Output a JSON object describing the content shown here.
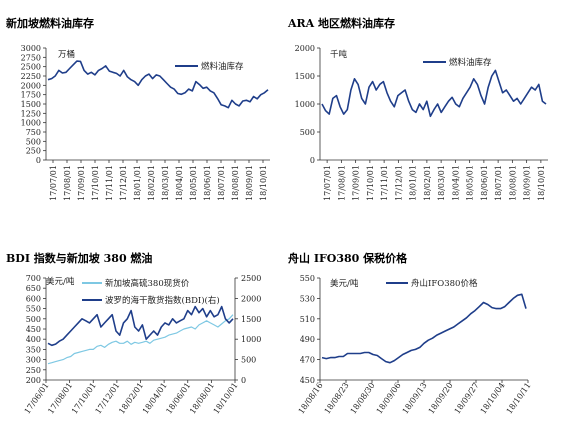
{
  "chart_data": [
    {
      "type": "line",
      "title": "新加坡燃料油库存",
      "unit": "万桶",
      "ylim": [
        0,
        3000
      ],
      "yticks": [
        0,
        250,
        500,
        750,
        1000,
        1250,
        1500,
        1750,
        2000,
        2250,
        2500,
        2750,
        3000
      ],
      "xticks": [
        "17/07/01",
        "17/08/01",
        "17/09/01",
        "17/10/01",
        "17/11/01",
        "17/12/01",
        "18/01/01",
        "18/02/01",
        "18/03/01",
        "18/04/01",
        "18/05/01",
        "18/06/01",
        "18/07/01",
        "18/08/01",
        "18/09/01",
        "18/10/01"
      ],
      "legend_position": "top-right",
      "series": [
        {
          "name": "燃料油库存",
          "color": "#1f3e8a",
          "values": [
            2150,
            2180,
            2250,
            2400,
            2330,
            2350,
            2450,
            2550,
            2650,
            2640,
            2400,
            2300,
            2350,
            2280,
            2400,
            2450,
            2520,
            2380,
            2350,
            2320,
            2250,
            2400,
            2230,
            2150,
            2100,
            2000,
            2150,
            2250,
            2300,
            2180,
            2280,
            2250,
            2150,
            2050,
            1950,
            1900,
            1780,
            1760,
            1800,
            1900,
            1850,
            2100,
            2020,
            1920,
            1950,
            1850,
            1800,
            1650,
            1480,
            1450,
            1400,
            1600,
            1500,
            1450,
            1580,
            1600,
            1560,
            1700,
            1640,
            1750,
            1800,
            1880
          ]
        }
      ]
    },
    {
      "type": "line",
      "title": "ARA 地区燃料油库存",
      "unit": "千吨",
      "ylim": [
        0,
        2000
      ],
      "yticks": [
        0,
        500,
        1000,
        1500,
        2000
      ],
      "xticks": [
        "17/07/01",
        "17/08/01",
        "17/09/01",
        "17/10/01",
        "17/11/01",
        "17/12/01",
        "18/01/01",
        "18/02/01",
        "18/03/01",
        "18/04/01",
        "18/05/01",
        "18/06/01",
        "18/07/01",
        "18/08/01",
        "18/09/01",
        "18/10/01"
      ],
      "legend_position": "top-right",
      "series": [
        {
          "name": "燃料油库存",
          "color": "#1f3e8a",
          "values": [
            1000,
            880,
            820,
            1100,
            1150,
            950,
            820,
            900,
            1250,
            1450,
            1350,
            1100,
            1000,
            1300,
            1400,
            1250,
            1350,
            1400,
            1200,
            1050,
            950,
            1150,
            1200,
            1250,
            1050,
            900,
            850,
            1000,
            900,
            1050,
            780,
            900,
            1000,
            850,
            950,
            1050,
            1120,
            1000,
            950,
            1100,
            1200,
            1300,
            1450,
            1350,
            1150,
            1000,
            1300,
            1500,
            1600,
            1400,
            1200,
            1250,
            1150,
            1050,
            1100,
            1000,
            1100,
            1200,
            1300,
            1250,
            1350,
            1050,
            1000
          ]
        }
      ]
    },
    {
      "type": "line",
      "title": "BDI 指数与新加坡 380 燃油",
      "unit_left": "美元/吨",
      "ylim_left": [
        200,
        700
      ],
      "yticks_left": [
        200,
        250,
        300,
        350,
        400,
        450,
        500,
        550,
        600,
        650,
        700
      ],
      "ylim_right": [
        0,
        2500
      ],
      "yticks_right": [
        0,
        500,
        1000,
        1500,
        2000,
        2500
      ],
      "xticks": [
        "17/06/01",
        "17/08/01",
        "17/10/01",
        "17/12/01",
        "18/02/01",
        "18/04/01",
        "18/06/01",
        "18/08/01",
        "18/10/01"
      ],
      "legend_position": "top",
      "series": [
        {
          "name": "新加坡高硫380现货价",
          "axis": "left",
          "color": "#7ec8e3",
          "values": [
            280,
            285,
            290,
            295,
            300,
            310,
            315,
            330,
            335,
            340,
            345,
            350,
            350,
            365,
            370,
            360,
            375,
            385,
            390,
            380,
            380,
            390,
            375,
            385,
            380,
            385,
            390,
            380,
            395,
            400,
            405,
            410,
            420,
            425,
            430,
            440,
            450,
            455,
            460,
            450,
            470,
            480,
            490,
            480,
            470,
            460,
            475,
            490,
            500,
            520
          ]
        },
        {
          "name": "波罗的海干散货指数(BDI)(右)",
          "axis": "right",
          "color": "#1f3e8a",
          "values": [
            900,
            850,
            880,
            950,
            1000,
            1100,
            1200,
            1300,
            1400,
            1500,
            1450,
            1400,
            1500,
            1600,
            1300,
            1400,
            1500,
            1600,
            1200,
            1100,
            1400,
            1500,
            1700,
            1300,
            1200,
            1350,
            1000,
            1100,
            1200,
            1100,
            1300,
            1400,
            1350,
            1500,
            1400,
            1450,
            1500,
            1700,
            1600,
            1800,
            1650,
            1750,
            1550,
            1700,
            1550,
            1600,
            1800,
            1500,
            1400,
            1500
          ]
        }
      ]
    },
    {
      "type": "line",
      "title": "舟山 IFO380 保税价格",
      "unit": "美元/吨",
      "ylim": [
        450,
        550
      ],
      "yticks": [
        450,
        470,
        490,
        510,
        530,
        550
      ],
      "xticks": [
        "18/08/16",
        "18/08/23",
        "18/08/30",
        "18/09/06",
        "18/09/13",
        "18/09/20",
        "18/09/27",
        "18/10/04",
        "18/10/11"
      ],
      "legend_position": "top",
      "series": [
        {
          "name": "舟山IFO380价格",
          "color": "#1f3e8a",
          "values": [
            472,
            471,
            472,
            472,
            473,
            473,
            476,
            476,
            476,
            476,
            477,
            477,
            475,
            474,
            471,
            468,
            467,
            469,
            472,
            475,
            477,
            479,
            480,
            482,
            486,
            489,
            491,
            494,
            496,
            498,
            500,
            502,
            505,
            508,
            511,
            515,
            518,
            522,
            526,
            524,
            521,
            520,
            520,
            522,
            526,
            530,
            533,
            534,
            520
          ]
        }
      ]
    }
  ]
}
